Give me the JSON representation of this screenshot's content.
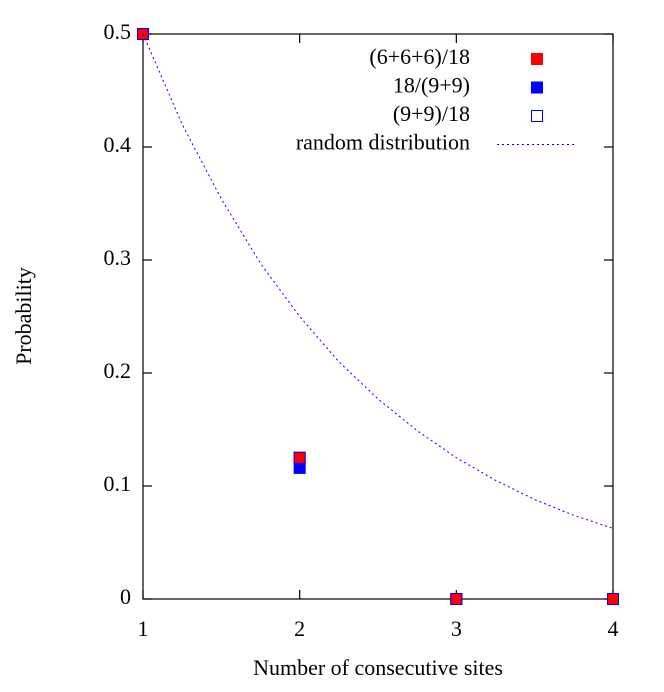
{
  "chart_data": {
    "type": "scatter",
    "x_label": "Number of consecutive sites",
    "y_label": "Probability",
    "xlim": [
      1,
      4
    ],
    "ylim": [
      0,
      0.5
    ],
    "xticks": [
      1,
      2,
      3,
      4
    ],
    "yticks": [
      0,
      0.1,
      0.2,
      0.3,
      0.4,
      0.5
    ],
    "grid": false,
    "legend": "upper right",
    "series": [
      {
        "name": "(6+6+6)/18",
        "color": "#ff0000",
        "style": "filled-square",
        "x": [
          1,
          2,
          3,
          4
        ],
        "values": [
          0.5,
          0.125,
          0,
          0
        ]
      },
      {
        "name": "18/(9+9)",
        "color": "#0000ff",
        "style": "filled-square",
        "x": [
          1,
          2,
          3,
          4
        ],
        "values": [
          0.5,
          0.116,
          0,
          0
        ]
      },
      {
        "name": "(9+9)/18",
        "color": "#0000ff",
        "style": "open-square",
        "x": [
          1,
          2,
          3,
          4
        ],
        "values": [
          0.5,
          0.125,
          0,
          0
        ]
      },
      {
        "name": "random distribution",
        "color": "#0000ff",
        "style": "dotted-line",
        "x": [
          1,
          1.25,
          1.5,
          1.75,
          2,
          2.25,
          2.5,
          2.75,
          3,
          3.25,
          3.5,
          3.75,
          4
        ],
        "values": [
          0.5,
          0.42,
          0.354,
          0.297,
          0.25,
          0.21,
          0.177,
          0.149,
          0.125,
          0.105,
          0.088,
          0.074,
          0.0625
        ]
      }
    ]
  }
}
